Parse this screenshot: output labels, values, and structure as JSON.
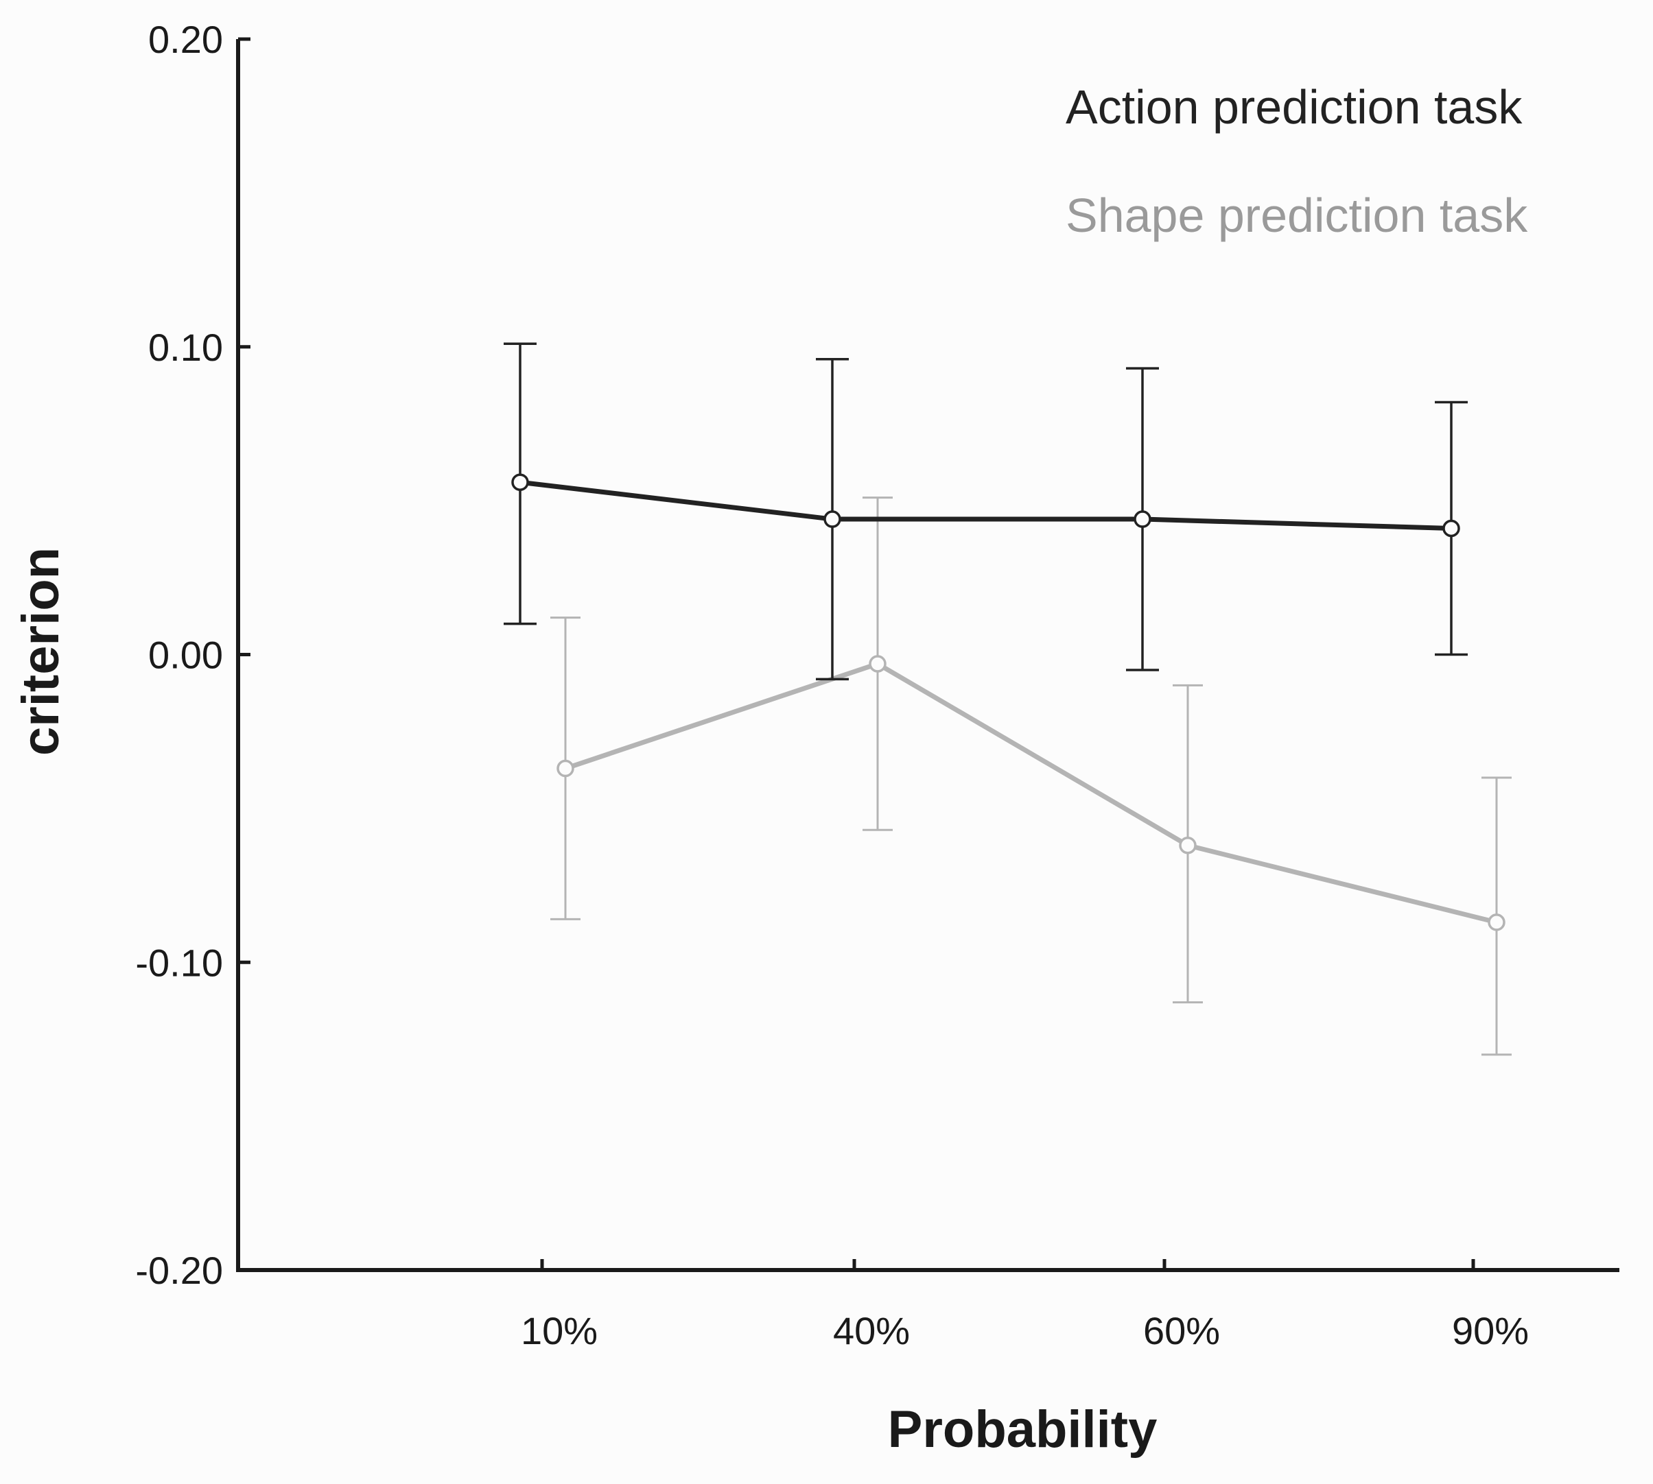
{
  "chart_data": {
    "type": "line",
    "title": "",
    "xlabel": "Probability",
    "ylabel": "criterion",
    "categories": [
      "10%",
      "40%",
      "60%",
      "90%"
    ],
    "ylim": [
      -0.2,
      0.2
    ],
    "yticks": [
      0.2,
      0.1,
      0.0,
      -0.1,
      -0.2
    ],
    "ytick_labels": [
      "0.20",
      "0.10",
      "0.00",
      "-0.10",
      "-0.20"
    ],
    "grid": false,
    "legend_position": "top-right",
    "series": [
      {
        "name": "Action prediction task",
        "color": "#222222",
        "values": [
          0.056,
          0.044,
          0.044,
          0.041
        ],
        "error_upper": [
          0.101,
          0.096,
          0.093,
          0.082
        ],
        "error_lower": [
          0.01,
          -0.008,
          -0.005,
          0.0
        ]
      },
      {
        "name": "Shape prediction task",
        "color": "#b4b4b4",
        "values": [
          -0.037,
          -0.003,
          -0.062,
          -0.087
        ],
        "error_upper": [
          0.012,
          0.051,
          -0.01,
          -0.04
        ],
        "error_lower": [
          -0.086,
          -0.057,
          -0.113,
          -0.13
        ]
      }
    ]
  }
}
